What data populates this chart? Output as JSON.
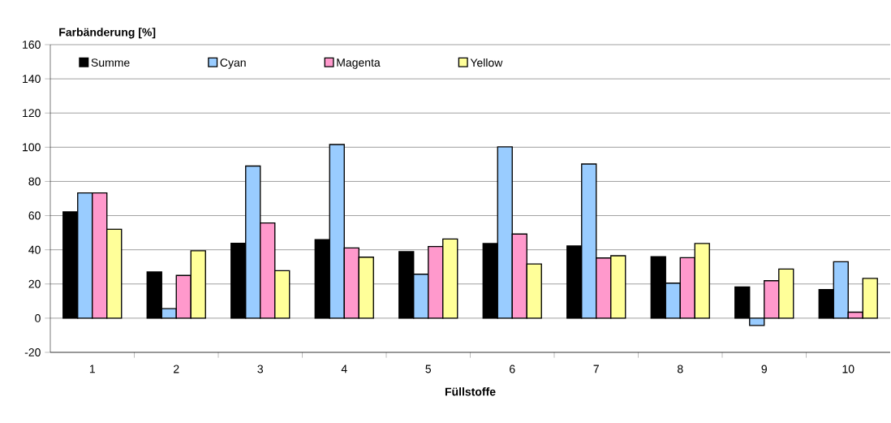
{
  "chart_data": {
    "type": "bar",
    "xlabel": "Füllstoffe",
    "ylabel": "Farbänderung [%]",
    "categories": [
      "1",
      "2",
      "3",
      "4",
      "5",
      "6",
      "7",
      "8",
      "9",
      "10"
    ],
    "series": [
      {
        "name": "Summe",
        "color": "#000000",
        "values": [
          62.2,
          27,
          43.8,
          45.9,
          38.9,
          43.7,
          42.2,
          36,
          18.3,
          16.7
        ]
      },
      {
        "name": "Cyan",
        "color": "#99ccff",
        "values": [
          73.3,
          5.6,
          89,
          101.6,
          25.7,
          100.2,
          90.2,
          20.5,
          -4.3,
          33
        ]
      },
      {
        "name": "Magenta",
        "color": "#ff99cc",
        "values": [
          73.3,
          25,
          55.7,
          41.1,
          41.9,
          49.2,
          35.2,
          35.4,
          21.9,
          3.5
        ]
      },
      {
        "name": "Yellow",
        "color": "#ffff99",
        "values": [
          52,
          39.4,
          27.8,
          35.7,
          46.3,
          31.7,
          36.5,
          43.7,
          28.7,
          23.3
        ]
      }
    ],
    "ylim": [
      -20,
      160
    ],
    "yticks": [
      -20,
      0,
      20,
      40,
      60,
      80,
      100,
      120,
      140,
      160
    ],
    "grid": "y",
    "legend": "top left"
  }
}
